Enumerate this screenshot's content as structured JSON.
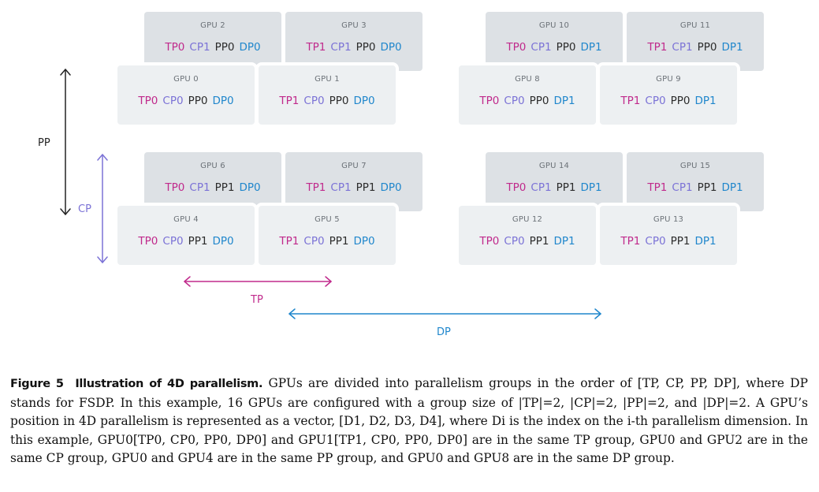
{
  "gpus": {
    "g2": {
      "name": "GPU 2",
      "tp": "TP0",
      "cp": "CP1",
      "pp": "PP0",
      "dp": "DP0"
    },
    "g3": {
      "name": "GPU 3",
      "tp": "TP1",
      "cp": "CP1",
      "pp": "PP0",
      "dp": "DP0"
    },
    "g10": {
      "name": "GPU 10",
      "tp": "TP0",
      "cp": "CP1",
      "pp": "PP0",
      "dp": "DP1"
    },
    "g11": {
      "name": "GPU 11",
      "tp": "TP1",
      "cp": "CP1",
      "pp": "PP0",
      "dp": "DP1"
    },
    "g0": {
      "name": "GPU 0",
      "tp": "TP0",
      "cp": "CP0",
      "pp": "PP0",
      "dp": "DP0"
    },
    "g1": {
      "name": "GPU 1",
      "tp": "TP1",
      "cp": "CP0",
      "pp": "PP0",
      "dp": "DP0"
    },
    "g8": {
      "name": "GPU 8",
      "tp": "TP0",
      "cp": "CP0",
      "pp": "PP0",
      "dp": "DP1"
    },
    "g9": {
      "name": "GPU 9",
      "tp": "TP1",
      "cp": "CP0",
      "pp": "PP0",
      "dp": "DP1"
    },
    "g6": {
      "name": "GPU 6",
      "tp": "TP0",
      "cp": "CP1",
      "pp": "PP1",
      "dp": "DP0"
    },
    "g7": {
      "name": "GPU 7",
      "tp": "TP1",
      "cp": "CP1",
      "pp": "PP1",
      "dp": "DP0"
    },
    "g14": {
      "name": "GPU 14",
      "tp": "TP0",
      "cp": "CP1",
      "pp": "PP1",
      "dp": "DP1"
    },
    "g15": {
      "name": "GPU 15",
      "tp": "TP1",
      "cp": "CP1",
      "pp": "PP1",
      "dp": "DP1"
    },
    "g4": {
      "name": "GPU 4",
      "tp": "TP0",
      "cp": "CP0",
      "pp": "PP1",
      "dp": "DP0"
    },
    "g5": {
      "name": "GPU 5",
      "tp": "TP1",
      "cp": "CP0",
      "pp": "PP1",
      "dp": "DP0"
    },
    "g12": {
      "name": "GPU 12",
      "tp": "TP0",
      "cp": "CP0",
      "pp": "PP1",
      "dp": "DP1"
    },
    "g13": {
      "name": "GPU 13",
      "tp": "TP1",
      "cp": "CP0",
      "pp": "PP1",
      "dp": "DP1"
    }
  },
  "axes": {
    "pp": "PP",
    "cp": "CP",
    "tp": "TP",
    "dp": "DP"
  },
  "colors": {
    "tp": "#c02a8c",
    "cp": "#7b72d6",
    "pp": "#2b2b2b",
    "dp": "#1f86cc"
  },
  "caption": {
    "label": "Figure 5",
    "title": "Illustration of 4D parallelism.",
    "body": "GPUs are divided into parallelism groups in the order of [TP, CP, PP, DP], where DP stands for FSDP. In this example, 16 GPUs are configured with a group size of |TP|=2, |CP|=2, |PP|=2, and |DP|=2. A GPU’s position in 4D parallelism is represented as a vector, [D1, D2, D3, D4], where Di is the index on the i-th parallelism dimension. In this example, GPU0[TP0, CP0, PP0, DP0] and GPU1[TP1, CP0, PP0, DP0] are in the same TP group, GPU0 and GPU2 are in the same CP group, GPU0 and GPU4 are in the same PP group, and GPU0 and GPU8 are in the same DP group."
  }
}
